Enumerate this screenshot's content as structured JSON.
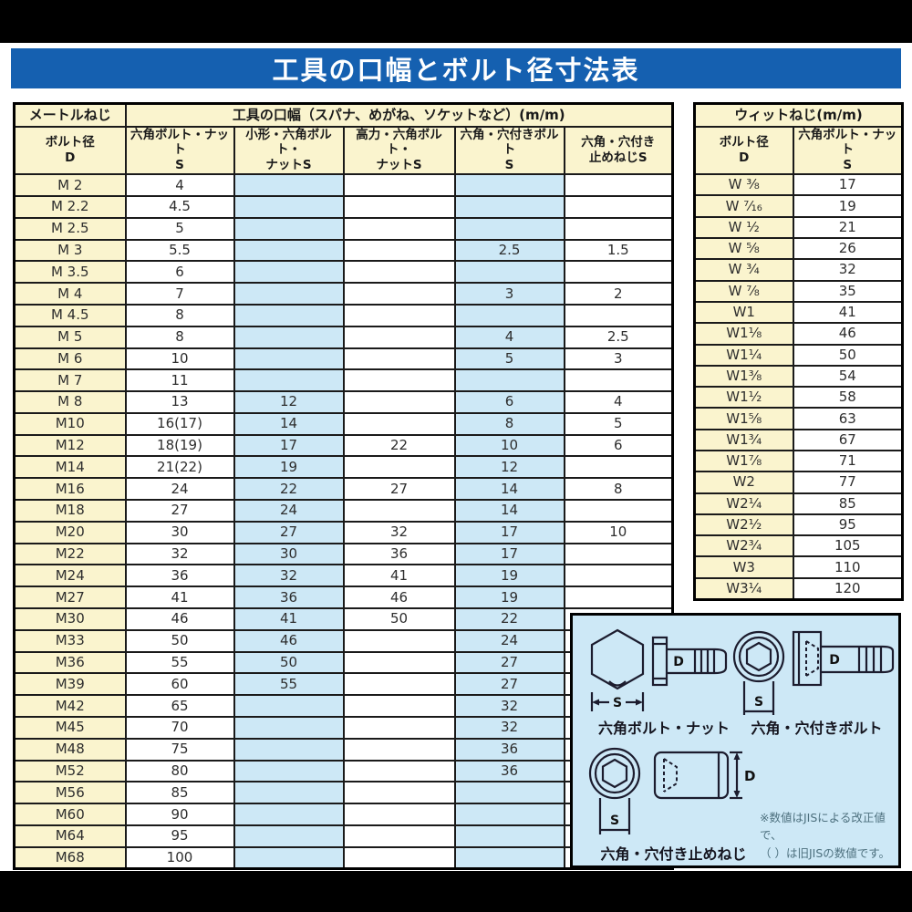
{
  "title": "工具の口幅とボルト径寸法表",
  "metric_table": {
    "thread_header": "メートルねじ",
    "tool_width_header": "工具の口幅（スパナ、めがね、ソケットなど）(m/m)",
    "col_headers": [
      "ボルト径\nD",
      "六角ボルト・ナット\nS",
      "小形・六角ボルト・\nナットS",
      "高力・六角ボルト・\nナットS",
      "六角・穴付きボルト\nS",
      "六角・穴付き\n止めねじS"
    ],
    "rows": [
      [
        "M 2",
        "4",
        "",
        "",
        "",
        ""
      ],
      [
        "M 2.2",
        "4.5",
        "",
        "",
        "",
        ""
      ],
      [
        "M 2.5",
        "5",
        "",
        "",
        "",
        ""
      ],
      [
        "M 3",
        "5.5",
        "",
        "",
        "2.5",
        "1.5"
      ],
      [
        "M 3.5",
        "6",
        "",
        "",
        "",
        ""
      ],
      [
        "M 4",
        "7",
        "",
        "",
        "3",
        "2"
      ],
      [
        "M 4.5",
        "8",
        "",
        "",
        "",
        ""
      ],
      [
        "M 5",
        "8",
        "",
        "",
        "4",
        "2.5"
      ],
      [
        "M 6",
        "10",
        "",
        "",
        "5",
        "3"
      ],
      [
        "M 7",
        "11",
        "",
        "",
        "",
        ""
      ],
      [
        "M 8",
        "13",
        "12",
        "",
        "6",
        "4"
      ],
      [
        "M10",
        "16(17)",
        "14",
        "",
        "8",
        "5"
      ],
      [
        "M12",
        "18(19)",
        "17",
        "22",
        "10",
        "6"
      ],
      [
        "M14",
        "21(22)",
        "19",
        "",
        "12",
        ""
      ],
      [
        "M16",
        "24",
        "22",
        "27",
        "14",
        "8"
      ],
      [
        "M18",
        "27",
        "24",
        "",
        "14",
        ""
      ],
      [
        "M20",
        "30",
        "27",
        "32",
        "17",
        "10"
      ],
      [
        "M22",
        "32",
        "30",
        "36",
        "17",
        ""
      ],
      [
        "M24",
        "36",
        "32",
        "41",
        "19",
        ""
      ],
      [
        "M27",
        "41",
        "36",
        "46",
        "19",
        ""
      ],
      [
        "M30",
        "46",
        "41",
        "50",
        "22",
        ""
      ],
      [
        "M33",
        "50",
        "46",
        "",
        "24",
        ""
      ],
      [
        "M36",
        "55",
        "50",
        "",
        "27",
        ""
      ],
      [
        "M39",
        "60",
        "55",
        "",
        "27",
        ""
      ],
      [
        "M42",
        "65",
        "",
        "",
        "32",
        ""
      ],
      [
        "M45",
        "70",
        "",
        "",
        "32",
        ""
      ],
      [
        "M48",
        "75",
        "",
        "",
        "36",
        ""
      ],
      [
        "M52",
        "80",
        "",
        "",
        "36",
        ""
      ],
      [
        "M56",
        "85",
        "",
        "",
        "",
        ""
      ],
      [
        "M60",
        "90",
        "",
        "",
        "",
        ""
      ],
      [
        "M64",
        "95",
        "",
        "",
        "",
        ""
      ],
      [
        "M68",
        "100",
        "",
        "",
        "",
        ""
      ]
    ]
  },
  "whitworth_table": {
    "header": "ウィットねじ(m/m)",
    "col_headers": [
      "ボルト径\nD",
      "六角ボルト・ナット\nS"
    ],
    "rows": [
      [
        "W ³⁄₈",
        "17"
      ],
      [
        "W ⁷⁄₁₆",
        "19"
      ],
      [
        "W ¹⁄₂",
        "21"
      ],
      [
        "W ⁵⁄₈",
        "26"
      ],
      [
        "W ³⁄₄",
        "32"
      ],
      [
        "W ⁷⁄₈",
        "35"
      ],
      [
        "W1",
        "41"
      ],
      [
        "W1¹⁄₈",
        "46"
      ],
      [
        "W1¹⁄₄",
        "50"
      ],
      [
        "W1³⁄₈",
        "54"
      ],
      [
        "W1¹⁄₂",
        "58"
      ],
      [
        "W1⁵⁄₈",
        "63"
      ],
      [
        "W1³⁄₄",
        "67"
      ],
      [
        "W1⁷⁄₈",
        "71"
      ],
      [
        "W2",
        "77"
      ],
      [
        "W2¹⁄₄",
        "85"
      ],
      [
        "W2¹⁄₂",
        "95"
      ],
      [
        "W2³⁄₄",
        "105"
      ],
      [
        "W3",
        "110"
      ],
      [
        "W3¹⁄₄",
        "120"
      ]
    ]
  },
  "diagram": {
    "s_label": "S",
    "d_label": "D",
    "hex_bolt_label": "六角ボルト・ナット",
    "socket_bolt_label": "六角・穴付きボルト",
    "set_screw_label": "六角・穴付き止めねじ",
    "note_line1": "※数値はJISによる改正値で、",
    "note_line2": "（ ）は旧JISの数値です。"
  },
  "colors": {
    "banner_blue": "#1560b0",
    "header_cream": "#faf4ce",
    "cell_blue": "#cde8f6",
    "frame_black": "#000000"
  }
}
